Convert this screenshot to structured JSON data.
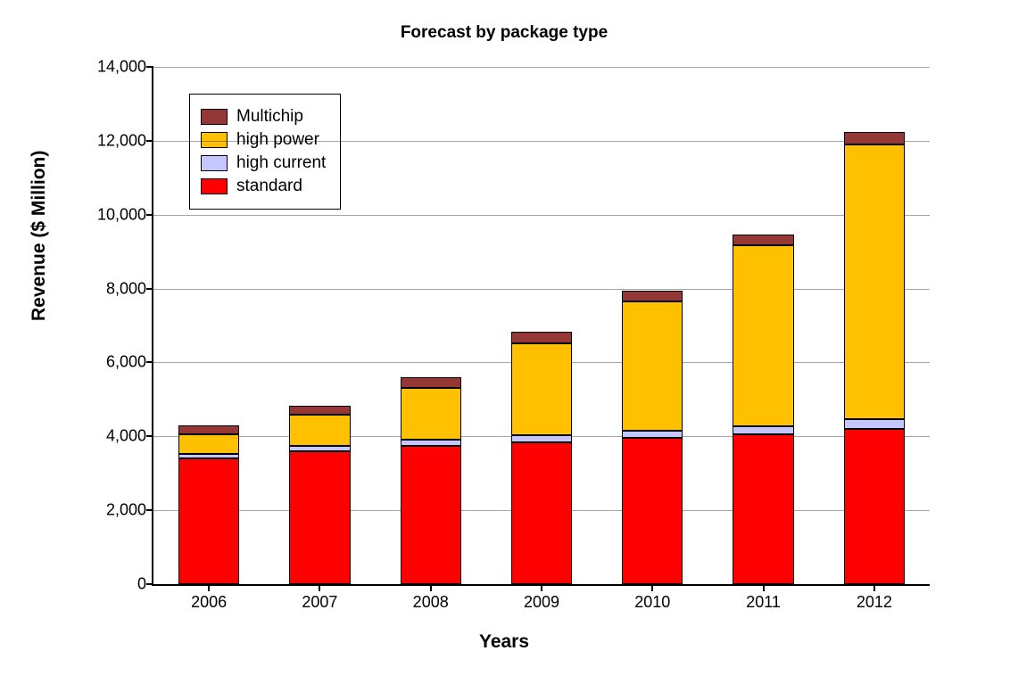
{
  "chart": {
    "type": "stacked-bar",
    "title": "Forecast by package type",
    "title_fontsize": 19,
    "xlabel": "Years",
    "ylabel": "Revenue ($ Million)",
    "axis_label_fontsize": 21,
    "tick_fontsize": 18,
    "legend_fontsize": 19,
    "background_color": "#ffffff",
    "grid_color": "#9a9a9a",
    "ylim": [
      0,
      14000
    ],
    "ytick_step": 2000,
    "ytick_labels": [
      "0",
      "2,000",
      "4,000",
      "6,000",
      "8,000",
      "10,000",
      "12,000",
      "14,000"
    ],
    "categories": [
      "2006",
      "2007",
      "2008",
      "2009",
      "2010",
      "2011",
      "2012"
    ],
    "bar_width": 0.55,
    "series": [
      {
        "name": "standard",
        "color": "#ff0000",
        "values": [
          3400,
          3600,
          3750,
          3850,
          3950,
          4050,
          4200
        ]
      },
      {
        "name": "high current",
        "color": "#c6c6ff",
        "values": [
          120,
          130,
          150,
          170,
          200,
          220,
          260
        ]
      },
      {
        "name": "high power",
        "color": "#ffc000",
        "values": [
          540,
          850,
          1400,
          2500,
          3500,
          4900,
          7450
        ]
      },
      {
        "name": "Multichip",
        "color": "#953735",
        "values": [
          240,
          260,
          300,
          300,
          300,
          300,
          320
        ]
      }
    ],
    "legend_order": [
      "Multichip",
      "high power",
      "high current",
      "standard"
    ]
  }
}
